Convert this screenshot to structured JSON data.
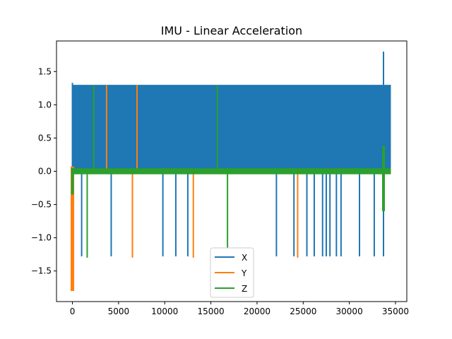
{
  "chart_data": {
    "type": "line",
    "title": "IMU - Linear Acceleration",
    "xlabel": "",
    "ylabel": "",
    "xlim": [
      -1725,
      36225
    ],
    "ylim": [
      -1.96,
      1.96
    ],
    "x_ticks": [
      0,
      5000,
      10000,
      15000,
      20000,
      25000,
      30000,
      35000
    ],
    "x_tick_labels": [
      "0",
      "5000",
      "10000",
      "15000",
      "20000",
      "25000",
      "30000",
      "35000"
    ],
    "y_ticks": [
      -1.5,
      -1.0,
      -0.5,
      0.0,
      0.5,
      1.0,
      1.5
    ],
    "y_tick_labels": [
      "−1.5",
      "−1.0",
      "−0.5",
      "0.0",
      "0.5",
      "1.0",
      "1.5"
    ],
    "legend": {
      "placement": "lower-center",
      "entries": [
        "X",
        "Y",
        "Z"
      ]
    },
    "grid": false,
    "series": [
      {
        "name": "X",
        "color": "#1f77b4",
        "band": {
          "x_start": 0,
          "x_end": 34500,
          "low": 0.0,
          "high": 1.3
        },
        "start_high": 1.33,
        "end_peak": {
          "x": 33700,
          "y": 1.8
        },
        "spikes": [
          {
            "x": 1000,
            "y": -1.28
          },
          {
            "x": 4200,
            "y": -1.28
          },
          {
            "x": 9800,
            "y": -1.28
          },
          {
            "x": 11200,
            "y": -1.28
          },
          {
            "x": 12500,
            "y": -1.28
          },
          {
            "x": 22100,
            "y": -1.28
          },
          {
            "x": 24000,
            "y": -1.28
          },
          {
            "x": 25400,
            "y": -1.28
          },
          {
            "x": 26200,
            "y": -1.28
          },
          {
            "x": 27100,
            "y": -1.28
          },
          {
            "x": 27500,
            "y": -1.28
          },
          {
            "x": 27900,
            "y": -1.28
          },
          {
            "x": 28600,
            "y": -1.28
          },
          {
            "x": 29100,
            "y": -1.28
          },
          {
            "x": 31100,
            "y": -1.28
          },
          {
            "x": 32700,
            "y": -1.28
          },
          {
            "x": 33700,
            "y": -1.28
          }
        ]
      },
      {
        "name": "Y",
        "color": "#ff7f0e",
        "baseline": 0.0,
        "start_dip": {
          "x": 0,
          "low": -1.8,
          "high": 0.07
        },
        "spikes": [
          {
            "x": 3700,
            "y": 1.3
          },
          {
            "x": 6500,
            "y": -1.3
          },
          {
            "x": 7000,
            "y": 1.3
          },
          {
            "x": 13100,
            "y": -1.3
          },
          {
            "x": 24400,
            "y": -1.3
          }
        ]
      },
      {
        "name": "Z",
        "color": "#2ca02c",
        "baseline": 0.0,
        "start_dip": {
          "x": 0,
          "low": -0.35,
          "high": 0.05
        },
        "end_excursion": {
          "x": 33700,
          "low": -0.6,
          "high": 0.38
        },
        "spikes": [
          {
            "x": 1600,
            "y": -1.3
          },
          {
            "x": 2300,
            "y": 1.3
          },
          {
            "x": 15700,
            "y": 1.3
          },
          {
            "x": 16800,
            "y": -1.15
          }
        ]
      }
    ]
  }
}
